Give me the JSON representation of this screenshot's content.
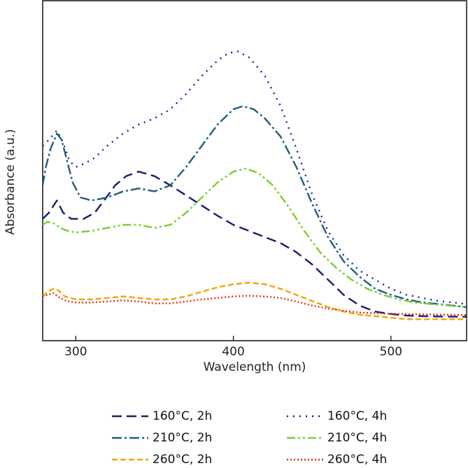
{
  "chart_data": {
    "type": "line",
    "title": "",
    "xlabel": "Wavelength (nm)",
    "ylabel": "Absorbance (a.u.)",
    "xlim": [
      279,
      548
    ],
    "ylim": [
      0,
      1
    ],
    "xticks": [
      300,
      400,
      500
    ],
    "yticks_shown": false,
    "grid": false,
    "legend_position": "bottom",
    "series": [
      {
        "name": "160°C, 2h",
        "color": "#1c1c6b",
        "dash": "14 7",
        "points": [
          [
            279,
            0.35
          ],
          [
            283,
            0.37
          ],
          [
            288,
            0.41
          ],
          [
            292,
            0.37
          ],
          [
            297,
            0.35
          ],
          [
            305,
            0.35
          ],
          [
            312,
            0.37
          ],
          [
            318,
            0.41
          ],
          [
            325,
            0.46
          ],
          [
            332,
            0.49
          ],
          [
            340,
            0.505
          ],
          [
            350,
            0.49
          ],
          [
            360,
            0.46
          ],
          [
            375,
            0.41
          ],
          [
            390,
            0.36
          ],
          [
            400,
            0.33
          ],
          [
            410,
            0.31
          ],
          [
            420,
            0.29
          ],
          [
            430,
            0.27
          ],
          [
            440,
            0.24
          ],
          [
            450,
            0.2
          ],
          [
            460,
            0.15
          ],
          [
            470,
            0.1
          ],
          [
            480,
            0.065
          ],
          [
            490,
            0.045
          ],
          [
            500,
            0.037
          ],
          [
            510,
            0.032
          ],
          [
            520,
            0.03
          ],
          [
            530,
            0.029
          ],
          [
            548,
            0.028
          ]
        ]
      },
      {
        "name": "160°C, 4h",
        "color": "#1a1aa0",
        "dash": "2 7",
        "points": [
          [
            279,
            0.59
          ],
          [
            283,
            0.61
          ],
          [
            288,
            0.64
          ],
          [
            292,
            0.6
          ],
          [
            296,
            0.54
          ],
          [
            300,
            0.52
          ],
          [
            305,
            0.53
          ],
          [
            312,
            0.55
          ],
          [
            320,
            0.59
          ],
          [
            330,
            0.63
          ],
          [
            340,
            0.66
          ],
          [
            350,
            0.68
          ],
          [
            360,
            0.71
          ],
          [
            370,
            0.76
          ],
          [
            380,
            0.82
          ],
          [
            390,
            0.87
          ],
          [
            397,
            0.895
          ],
          [
            403,
            0.9
          ],
          [
            410,
            0.88
          ],
          [
            420,
            0.82
          ],
          [
            430,
            0.72
          ],
          [
            440,
            0.58
          ],
          [
            450,
            0.43
          ],
          [
            460,
            0.31
          ],
          [
            470,
            0.23
          ],
          [
            480,
            0.18
          ],
          [
            490,
            0.15
          ],
          [
            500,
            0.12
          ],
          [
            510,
            0.1
          ],
          [
            520,
            0.09
          ],
          [
            530,
            0.08
          ],
          [
            548,
            0.07
          ]
        ]
      },
      {
        "name": "210°C, 2h",
        "color": "#1f5e7a",
        "dash": "14 4 3 4",
        "points": [
          [
            279,
            0.46
          ],
          [
            281,
            0.52
          ],
          [
            284,
            0.58
          ],
          [
            288,
            0.63
          ],
          [
            291,
            0.61
          ],
          [
            294,
            0.55
          ],
          [
            298,
            0.47
          ],
          [
            303,
            0.42
          ],
          [
            310,
            0.41
          ],
          [
            320,
            0.42
          ],
          [
            330,
            0.44
          ],
          [
            340,
            0.45
          ],
          [
            350,
            0.44
          ],
          [
            360,
            0.46
          ],
          [
            370,
            0.52
          ],
          [
            380,
            0.59
          ],
          [
            390,
            0.66
          ],
          [
            400,
            0.71
          ],
          [
            406,
            0.72
          ],
          [
            413,
            0.71
          ],
          [
            420,
            0.68
          ],
          [
            430,
            0.62
          ],
          [
            440,
            0.52
          ],
          [
            450,
            0.4
          ],
          [
            460,
            0.29
          ],
          [
            470,
            0.21
          ],
          [
            480,
            0.16
          ],
          [
            490,
            0.12
          ],
          [
            500,
            0.1
          ],
          [
            510,
            0.085
          ],
          [
            520,
            0.075
          ],
          [
            530,
            0.07
          ],
          [
            548,
            0.06
          ]
        ]
      },
      {
        "name": "210°C, 4h",
        "color": "#74d12b",
        "dash": "12 4 3 4 3 4",
        "points": [
          [
            279,
            0.33
          ],
          [
            282,
            0.34
          ],
          [
            286,
            0.335
          ],
          [
            290,
            0.32
          ],
          [
            295,
            0.31
          ],
          [
            300,
            0.305
          ],
          [
            310,
            0.31
          ],
          [
            320,
            0.32
          ],
          [
            330,
            0.33
          ],
          [
            340,
            0.33
          ],
          [
            350,
            0.32
          ],
          [
            360,
            0.33
          ],
          [
            370,
            0.37
          ],
          [
            380,
            0.42
          ],
          [
            390,
            0.47
          ],
          [
            400,
            0.505
          ],
          [
            408,
            0.515
          ],
          [
            416,
            0.5
          ],
          [
            425,
            0.46
          ],
          [
            435,
            0.39
          ],
          [
            445,
            0.31
          ],
          [
            455,
            0.24
          ],
          [
            465,
            0.19
          ],
          [
            475,
            0.15
          ],
          [
            485,
            0.12
          ],
          [
            495,
            0.1
          ],
          [
            505,
            0.085
          ],
          [
            515,
            0.075
          ],
          [
            525,
            0.07
          ],
          [
            548,
            0.06
          ]
        ]
      },
      {
        "name": "260°C, 2h",
        "color": "#f0a500",
        "dash": "8 4",
        "points": [
          [
            279,
            0.095
          ],
          [
            282,
            0.11
          ],
          [
            286,
            0.12
          ],
          [
            289,
            0.115
          ],
          [
            293,
            0.095
          ],
          [
            300,
            0.085
          ],
          [
            310,
            0.085
          ],
          [
            320,
            0.09
          ],
          [
            330,
            0.095
          ],
          [
            340,
            0.09
          ],
          [
            350,
            0.085
          ],
          [
            360,
            0.085
          ],
          [
            370,
            0.095
          ],
          [
            380,
            0.11
          ],
          [
            390,
            0.125
          ],
          [
            400,
            0.135
          ],
          [
            410,
            0.14
          ],
          [
            420,
            0.135
          ],
          [
            430,
            0.12
          ],
          [
            440,
            0.1
          ],
          [
            450,
            0.08
          ],
          [
            460,
            0.06
          ],
          [
            470,
            0.045
          ],
          [
            480,
            0.035
          ],
          [
            490,
            0.03
          ],
          [
            500,
            0.025
          ],
          [
            510,
            0.02
          ],
          [
            520,
            0.02
          ],
          [
            530,
            0.02
          ],
          [
            548,
            0.02
          ]
        ]
      },
      {
        "name": "260°C, 4h",
        "color": "#e0321b",
        "dash": "2 3",
        "points": [
          [
            279,
            0.095
          ],
          [
            282,
            0.1
          ],
          [
            286,
            0.105
          ],
          [
            290,
            0.09
          ],
          [
            294,
            0.08
          ],
          [
            300,
            0.075
          ],
          [
            310,
            0.075
          ],
          [
            320,
            0.078
          ],
          [
            330,
            0.082
          ],
          [
            340,
            0.078
          ],
          [
            350,
            0.072
          ],
          [
            360,
            0.072
          ],
          [
            370,
            0.078
          ],
          [
            380,
            0.085
          ],
          [
            390,
            0.09
          ],
          [
            400,
            0.095
          ],
          [
            410,
            0.097
          ],
          [
            420,
            0.095
          ],
          [
            430,
            0.09
          ],
          [
            440,
            0.078
          ],
          [
            450,
            0.065
          ],
          [
            460,
            0.055
          ],
          [
            470,
            0.048
          ],
          [
            480,
            0.042
          ],
          [
            490,
            0.04
          ],
          [
            500,
            0.038
          ],
          [
            510,
            0.037
          ],
          [
            520,
            0.036
          ],
          [
            530,
            0.035
          ],
          [
            548,
            0.034
          ]
        ]
      }
    ]
  }
}
